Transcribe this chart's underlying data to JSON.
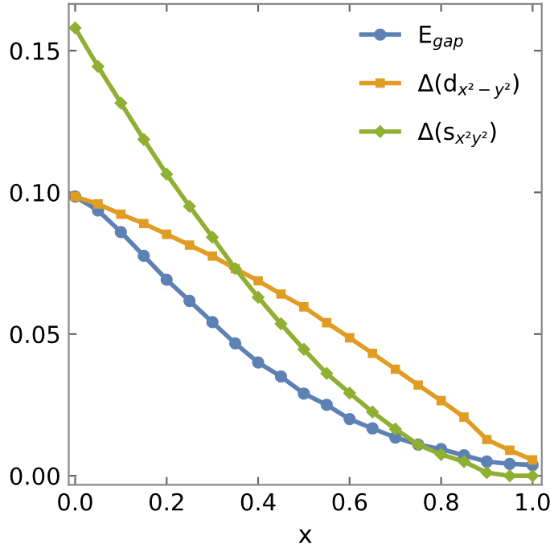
{
  "chart_data": {
    "type": "line",
    "xlabel": "x",
    "x": [
      0,
      0.05,
      0.1,
      0.15,
      0.2,
      0.25,
      0.3,
      0.35,
      0.4,
      0.45,
      0.5,
      0.55,
      0.6,
      0.65,
      0.7,
      0.75,
      0.8,
      0.85,
      0.9,
      0.95,
      1.0
    ],
    "series": [
      {
        "name": "E$_{gap}$",
        "color": "#5e81b5",
        "marker": "circle",
        "values": [
          0.0985,
          0.0936,
          0.086,
          0.0776,
          0.0692,
          0.0617,
          0.0542,
          0.0467,
          0.04,
          0.035,
          0.029,
          0.025,
          0.02,
          0.0167,
          0.0135,
          0.011,
          0.0094,
          0.0072,
          0.005,
          0.0042,
          0.0038
        ]
      },
      {
        "name": "Δ(d$_{x²−y²}$)",
        "color": "#e19c24",
        "marker": "square",
        "values": [
          0.0985,
          0.0959,
          0.0923,
          0.089,
          0.0852,
          0.0814,
          0.0775,
          0.0731,
          0.0688,
          0.0641,
          0.0596,
          0.054,
          0.0487,
          0.0432,
          0.0376,
          0.032,
          0.0265,
          0.0207,
          0.0128,
          0.009,
          0.0056
        ]
      },
      {
        "name": "Δ(s$_{x²y²}$)",
        "color": "#8fb032",
        "marker": "diamond",
        "values": [
          0.158,
          0.1444,
          0.1315,
          0.1187,
          0.1064,
          0.0951,
          0.0842,
          0.0731,
          0.063,
          0.0536,
          0.0446,
          0.0361,
          0.0292,
          0.0225,
          0.0165,
          0.011,
          0.0075,
          0.005,
          0.0011,
          0.0,
          0.0
        ]
      }
    ],
    "xlim": [
      -0.014,
      1.02
    ],
    "ylim": [
      -0.0032,
      0.1665
    ],
    "xticks": [
      {
        "value": 0.0,
        "label": "0.0"
      },
      0.2,
      0.4,
      0.6,
      0.8,
      {
        "value": 1.0,
        "label": "1.0"
      }
    ],
    "yticks": [
      {
        "value": 0.0,
        "label": "0.00"
      },
      {
        "value": 0.05,
        "label": "0.05"
      },
      {
        "value": 0.1,
        "label": "0.10"
      },
      {
        "value": 0.15,
        "label": "0.15"
      }
    ],
    "grid": false,
    "legend": "top right",
    "line_style": "solid"
  }
}
